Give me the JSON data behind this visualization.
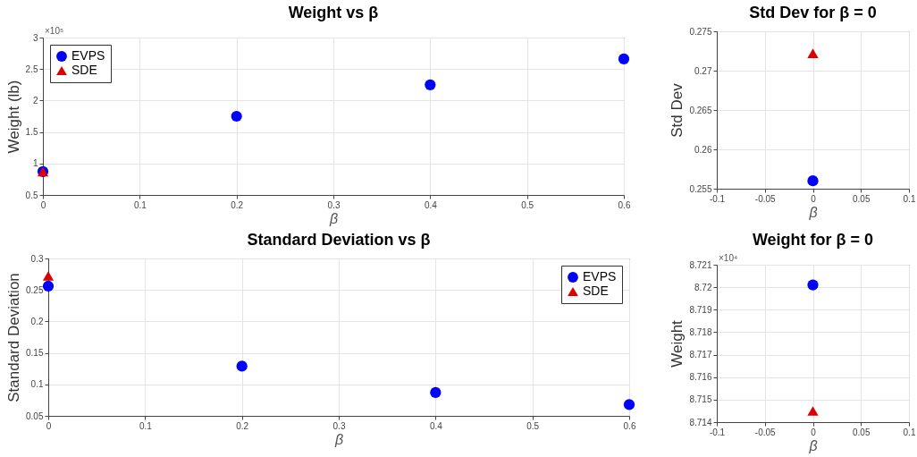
{
  "chart_data": [
    {
      "type": "scatter",
      "title": "Weight vs β",
      "xlabel": "β",
      "ylabel": "Weight (lb)",
      "xlim": [
        0,
        0.6
      ],
      "xticks": [
        0,
        0.1,
        0.2,
        0.3,
        0.4,
        0.5,
        0.6
      ],
      "ylim": [
        0.5,
        3
      ],
      "yticks": [
        0.5,
        1,
        1.5,
        2,
        2.5,
        3
      ],
      "annotations": [
        "×10⁵"
      ],
      "grid": true,
      "legend": "top left",
      "series": [
        {
          "name": "EVPS",
          "color": "#0000ff",
          "marker": "circle",
          "x": [
            0,
            0.2,
            0.4,
            0.6
          ],
          "values": [
            0.872,
            1.75,
            2.25,
            2.66
          ]
        },
        {
          "name": "SDE",
          "color": "#dd0000",
          "marker": "triangle",
          "x": [
            0
          ],
          "values": [
            0.871
          ]
        }
      ]
    },
    {
      "type": "scatter",
      "title": "Std Dev for β = 0",
      "xlabel": "β",
      "ylabel": "Std Dev",
      "xlim": [
        -0.1,
        0.1
      ],
      "xticks": [
        -0.1,
        -0.05,
        0,
        0.05,
        0.1
      ],
      "ylim": [
        0.255,
        0.275
      ],
      "yticks": [
        0.255,
        0.26,
        0.265,
        0.27,
        0.275
      ],
      "grid": true,
      "series": [
        {
          "color": "#0000ff",
          "marker": "circle",
          "x": [
            0
          ],
          "values": [
            0.256
          ]
        },
        {
          "color": "#dd0000",
          "marker": "triangle",
          "x": [
            0
          ],
          "values": [
            0.2722
          ]
        }
      ]
    },
    {
      "type": "scatter",
      "title": "Standard Deviation vs β",
      "xlabel": "β",
      "ylabel": "Standard Deviation",
      "xlim": [
        0,
        0.6
      ],
      "xticks": [
        0,
        0.1,
        0.2,
        0.3,
        0.4,
        0.5,
        0.6
      ],
      "ylim": [
        0.05,
        0.3
      ],
      "yticks": [
        0.05,
        0.1,
        0.15,
        0.2,
        0.25,
        0.3
      ],
      "grid": true,
      "legend": "top right",
      "series": [
        {
          "name": "EVPS",
          "color": "#0000ff",
          "marker": "circle",
          "x": [
            0,
            0.2,
            0.4,
            0.6
          ],
          "values": [
            0.256,
            0.129,
            0.087,
            0.068
          ]
        },
        {
          "name": "SDE",
          "color": "#dd0000",
          "marker": "triangle",
          "x": [
            0
          ],
          "values": [
            0.2722
          ]
        }
      ]
    },
    {
      "type": "scatter",
      "title": "Weight for β = 0",
      "xlabel": "β",
      "ylabel": "Weight",
      "xlim": [
        -0.1,
        0.1
      ],
      "xticks": [
        -0.1,
        -0.05,
        0,
        0.05,
        0.1
      ],
      "ylim": [
        8.714,
        8.721
      ],
      "yticks": [
        8.714,
        8.715,
        8.716,
        8.717,
        8.718,
        8.719,
        8.72,
        8.721
      ],
      "annotations": [
        "×10⁴"
      ],
      "grid": true,
      "series": [
        {
          "color": "#0000ff",
          "marker": "circle",
          "x": [
            0
          ],
          "values": [
            8.7201
          ]
        },
        {
          "color": "#dd0000",
          "marker": "triangle",
          "x": [
            0
          ],
          "values": [
            8.7145
          ]
        }
      ]
    }
  ]
}
